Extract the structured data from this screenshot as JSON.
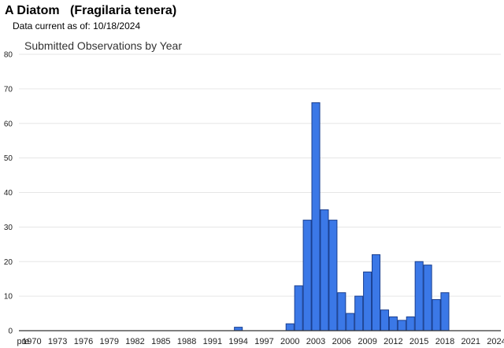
{
  "header": {
    "species_common": "A Diatom",
    "species_scientific": "(Fragilaria tenera)",
    "data_current_label": "Data current as of:",
    "data_current_date": "10/18/2024"
  },
  "colors": {
    "bar_fill": "#3b78e7",
    "bar_stroke": "#1a3f8f",
    "grid": "#e6e6e6",
    "axis": "#333333"
  },
  "chart_data": {
    "type": "bar",
    "title": "Submitted Observations by Year",
    "xlabel": "",
    "ylabel": "",
    "ylim": [
      0,
      80
    ],
    "yticks": [
      0,
      10,
      20,
      30,
      40,
      50,
      60,
      70,
      80
    ],
    "grid": true,
    "xtick_labels": [
      "pre",
      "1970",
      "1973",
      "1976",
      "1979",
      "1982",
      "1985",
      "1988",
      "1991",
      "1994",
      "1997",
      "2000",
      "2003",
      "2006",
      "2009",
      "2012",
      "2015",
      "2018",
      "2021",
      "2024"
    ],
    "categories": [
      "pre",
      "1970",
      "1971",
      "1972",
      "1973",
      "1974",
      "1975",
      "1976",
      "1977",
      "1978",
      "1979",
      "1980",
      "1981",
      "1982",
      "1983",
      "1984",
      "1985",
      "1986",
      "1987",
      "1988",
      "1989",
      "1990",
      "1991",
      "1992",
      "1993",
      "1994",
      "1995",
      "1996",
      "1997",
      "1998",
      "1999",
      "2000",
      "2001",
      "2002",
      "2003",
      "2004",
      "2005",
      "2006",
      "2007",
      "2008",
      "2009",
      "2010",
      "2011",
      "2012",
      "2013",
      "2014",
      "2015",
      "2016",
      "2017",
      "2018",
      "2019",
      "2020",
      "2021",
      "2022",
      "2023",
      "2024"
    ],
    "values": [
      0,
      0,
      0,
      0,
      0,
      0,
      0,
      0,
      0,
      0,
      0,
      0,
      0,
      0,
      0,
      0,
      0,
      0,
      0,
      0,
      0,
      0,
      0,
      0,
      0,
      1,
      0,
      0,
      0,
      0,
      0,
      2,
      13,
      32,
      66,
      35,
      32,
      11,
      5,
      10,
      17,
      22,
      6,
      4,
      3,
      4,
      20,
      19,
      9,
      11,
      0,
      0,
      0,
      0,
      0,
      0
    ]
  }
}
